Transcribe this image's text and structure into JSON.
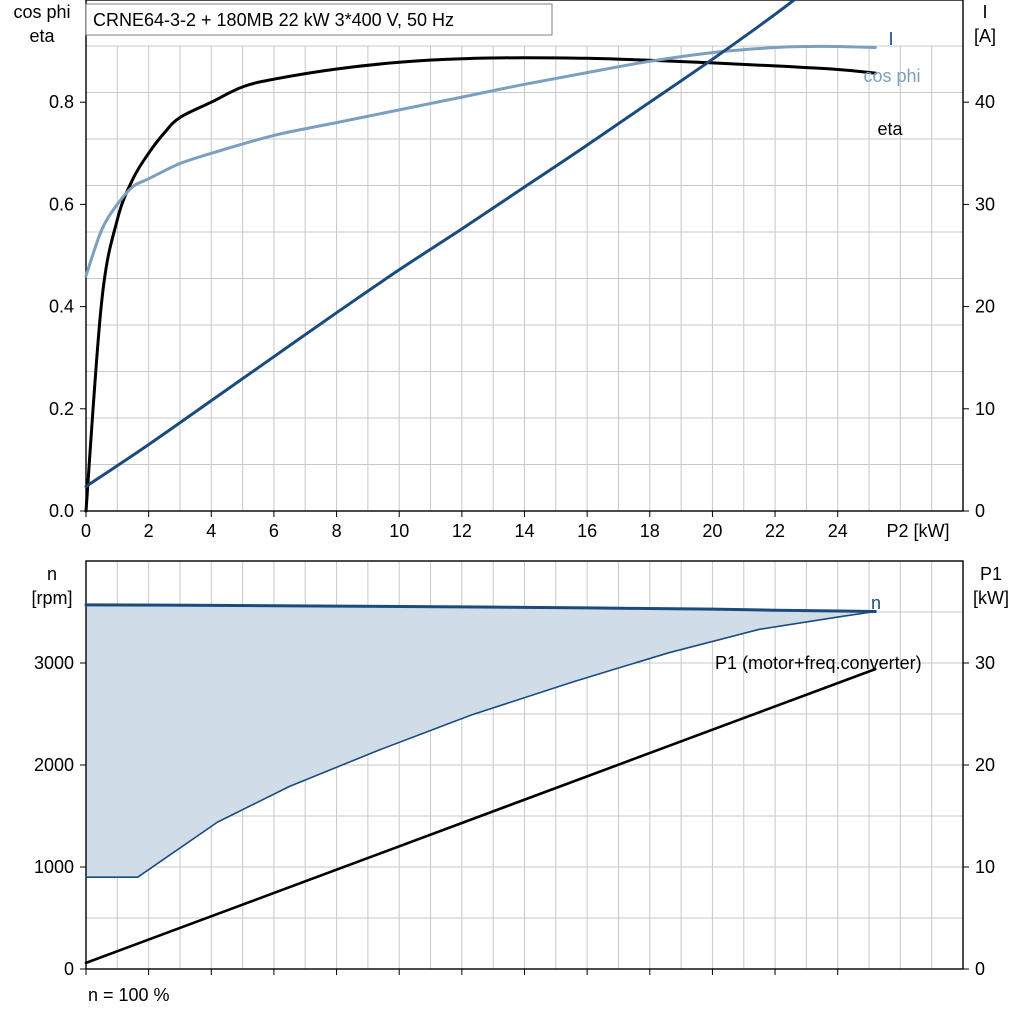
{
  "title": "CRNE64-3-2 + 180MB   22 kW   3*400 V, 50 Hz",
  "footer": "n = 100 %",
  "colors": {
    "eta": "#000000",
    "cos_phi": "#7c9fc0",
    "current": "#1b4b7d",
    "speed": "#1b4b7d",
    "speed_band_fill": "#d0dde9",
    "p1": "#000000",
    "grid": "#c8c8c8"
  },
  "chart_data": [
    {
      "type": "line",
      "xlabel": "P2 [kW]",
      "xlim": [
        0,
        28
      ],
      "xticks": [
        0,
        2,
        4,
        6,
        8,
        10,
        12,
        14,
        16,
        18,
        20,
        22,
        24
      ],
      "ylabel_left": [
        "cos phi",
        "eta"
      ],
      "ylim_left": [
        0,
        1.0
      ],
      "yticks_left": [
        0.0,
        0.2,
        0.4,
        0.6,
        0.8
      ],
      "yticklabels_left": [
        "0.0",
        "0.2",
        "0.4",
        "0.6",
        "0.8"
      ],
      "ylabel_right": [
        "I",
        "[A]"
      ],
      "ylim_right": [
        0,
        50
      ],
      "yticks_right": [
        0,
        10,
        20,
        30,
        40
      ],
      "grid": true,
      "series": [
        {
          "name": "eta",
          "axis": "left",
          "color_key": "eta",
          "x": [
            0,
            0.5,
            1.0,
            1.5,
            2.0,
            2.5,
            3.0,
            4.0,
            5.0,
            6.0,
            8.0,
            10.0,
            12.0,
            14.0,
            16.0,
            18.0,
            20.0,
            22.0,
            24.0,
            25.2
          ],
          "y": [
            0.0,
            0.41,
            0.57,
            0.65,
            0.7,
            0.74,
            0.77,
            0.8,
            0.83,
            0.845,
            0.865,
            0.878,
            0.885,
            0.887,
            0.886,
            0.882,
            0.877,
            0.871,
            0.864,
            0.857
          ]
        },
        {
          "name": "cos phi",
          "axis": "left",
          "color_key": "cos_phi",
          "x": [
            0,
            0.5,
            1.0,
            1.5,
            2.0,
            3.0,
            4.0,
            6.0,
            8.0,
            10.0,
            12.0,
            14.0,
            16.0,
            18.0,
            20.0,
            22.0,
            23.0,
            24.0,
            25.2
          ],
          "y": [
            0.46,
            0.55,
            0.6,
            0.635,
            0.65,
            0.68,
            0.7,
            0.735,
            0.76,
            0.785,
            0.81,
            0.835,
            0.858,
            0.88,
            0.897,
            0.907,
            0.909,
            0.909,
            0.907
          ]
        },
        {
          "name": "I",
          "axis": "right",
          "color_key": "current",
          "x": [
            0,
            2,
            4,
            6,
            8,
            10,
            12,
            14,
            16,
            18,
            20,
            22,
            24,
            25.2
          ],
          "y": [
            2.4,
            6.5,
            10.8,
            15.1,
            19.4,
            23.6,
            27.6,
            31.7,
            35.8,
            40.0,
            44.2,
            48.6,
            53.3,
            56.3
          ]
        }
      ],
      "series_labels": [
        {
          "text": "I",
          "color_key": "current"
        },
        {
          "text": "cos phi",
          "color_key": "cos_phi"
        },
        {
          "text": "eta",
          "color_key": "eta"
        }
      ]
    },
    {
      "type": "area",
      "xlim": [
        0,
        28
      ],
      "xticks": [
        0,
        2,
        4,
        6,
        8,
        10,
        12,
        14,
        16,
        18,
        20,
        22,
        24
      ],
      "ylabel_left": [
        "n",
        "[rpm]"
      ],
      "ylim_left": [
        0,
        4000
      ],
      "yticks_left": [
        0,
        1000,
        2000,
        3000
      ],
      "ylabel_right": [
        "P1",
        "[kW]"
      ],
      "ylim_right": [
        0,
        40
      ],
      "yticks_right": [
        0,
        10,
        20,
        30
      ],
      "grid": true,
      "series": [
        {
          "name": "n",
          "axis": "left",
          "color_key": "speed",
          "x": [
            0,
            4,
            8,
            12,
            16,
            20,
            22,
            24,
            25.2
          ],
          "y": [
            3570,
            3565,
            3558,
            3550,
            3540,
            3528,
            3518,
            3510,
            3505
          ]
        },
        {
          "name": "n min",
          "axis": "left",
          "color_key": "speed",
          "x": [
            0,
            1.65,
            4.2,
            6.5,
            9.3,
            12.3,
            15.6,
            18.6,
            21.5,
            24.0,
            25.2
          ],
          "y": [
            900,
            900,
            1440,
            1790,
            2140,
            2490,
            2820,
            3100,
            3330,
            3450,
            3505
          ]
        },
        {
          "name": "P1 (motor+freq.converter)",
          "axis": "right",
          "color_key": "p1",
          "x": [
            0,
            25.2
          ],
          "y": [
            0.6,
            29.4
          ]
        }
      ],
      "series_labels": [
        {
          "text": "n",
          "color_key": "speed"
        },
        {
          "text": "P1 (motor+freq.converter)",
          "color_key": "p1"
        }
      ]
    }
  ]
}
